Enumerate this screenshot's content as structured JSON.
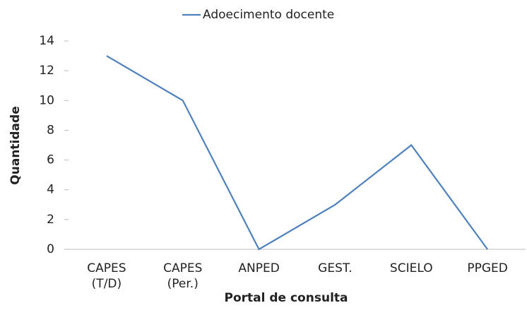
{
  "chart_data": {
    "type": "line",
    "categories": [
      "CAPES (T/D)",
      "CAPES (Per.)",
      "ANPED",
      "GEST.",
      "SCIELO",
      "PPGED"
    ],
    "series": [
      {
        "name": "Adoecimento docente",
        "color": "#4f81bd",
        "values": [
          13,
          10,
          0,
          3,
          7,
          0
        ]
      }
    ],
    "ylim": [
      0,
      14
    ],
    "yticks": [
      0,
      2,
      4,
      6,
      8,
      10,
      12,
      14
    ],
    "xlabel": "Portal de consulta",
    "ylabel": "Quantidade",
    "grid": false,
    "legend": "top"
  }
}
